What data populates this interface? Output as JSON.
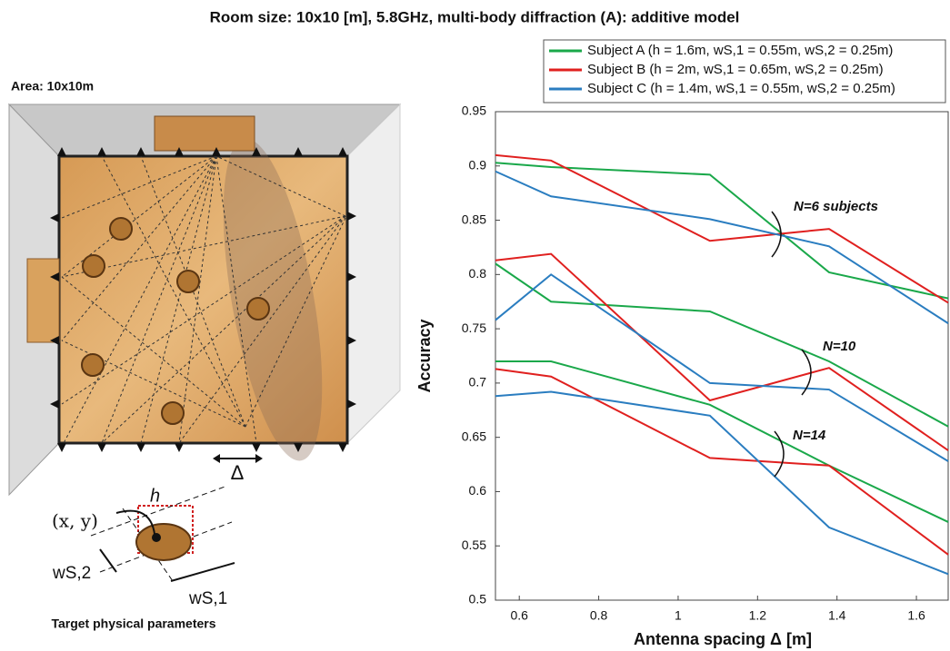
{
  "chart_data": {
    "type": "line",
    "title": "Room size: 10x10 [m], 5.8GHz, multi-body diffraction (A): additive model",
    "x_label": "Antenna spacing Δ [m]",
    "y_label": "Accuracy",
    "x": [
      0.54,
      0.68,
      1.08,
      1.38,
      1.68
    ],
    "xlim": [
      0.54,
      1.68
    ],
    "xticks": [
      0.6,
      0.8,
      1,
      1.2,
      1.4,
      1.6
    ],
    "ylim": [
      0.5,
      0.95
    ],
    "yticks": [
      0.5,
      0.55,
      0.6,
      0.65,
      0.7,
      0.75,
      0.8,
      0.85,
      0.9,
      0.95
    ],
    "legend": [
      {
        "name": "Subject A (h = 1.6m, wS,1 = 0.55m, wS,2 = 0.25m)",
        "color": "#1aa84a"
      },
      {
        "name": "Subject B (h = 2m, wS,1 = 0.65m, wS,2 = 0.25m)",
        "color": "#e0201f"
      },
      {
        "name": "Subject C (h = 1.4m, wS,1 = 0.55m, wS,2 = 0.25m)",
        "color": "#2a7dc0"
      }
    ],
    "groups": [
      {
        "label": "N=6 subjects",
        "series": [
          {
            "values": [
              0.903,
              0.899,
              0.892,
              0.802,
              0.778
            ]
          },
          {
            "values": [
              0.91,
              0.905,
              0.831,
              0.842,
              0.774
            ]
          },
          {
            "values": [
              0.895,
              0.872,
              0.851,
              0.826,
              0.755
            ]
          }
        ]
      },
      {
        "label": "N=10",
        "series": [
          {
            "values": [
              0.81,
              0.775,
              0.766,
              0.72,
              0.66
            ]
          },
          {
            "values": [
              0.813,
              0.819,
              0.684,
              0.714,
              0.638
            ]
          },
          {
            "values": [
              0.758,
              0.8,
              0.7,
              0.694,
              0.628
            ]
          }
        ]
      },
      {
        "label": "N=14",
        "series": [
          {
            "values": [
              0.72,
              0.72,
              0.68,
              0.624,
              0.572
            ]
          },
          {
            "values": [
              0.713,
              0.706,
              0.631,
              0.624,
              0.542
            ]
          },
          {
            "values": [
              0.688,
              0.692,
              0.67,
              0.567,
              0.524
            ]
          }
        ]
      }
    ]
  },
  "illustration": {
    "area_label": "Area: 10x10m",
    "delta": "Δ",
    "height": "h",
    "position": "(x, y)",
    "width2": "wS,2",
    "width1": "wS,1",
    "caption": "Target physical parameters"
  }
}
